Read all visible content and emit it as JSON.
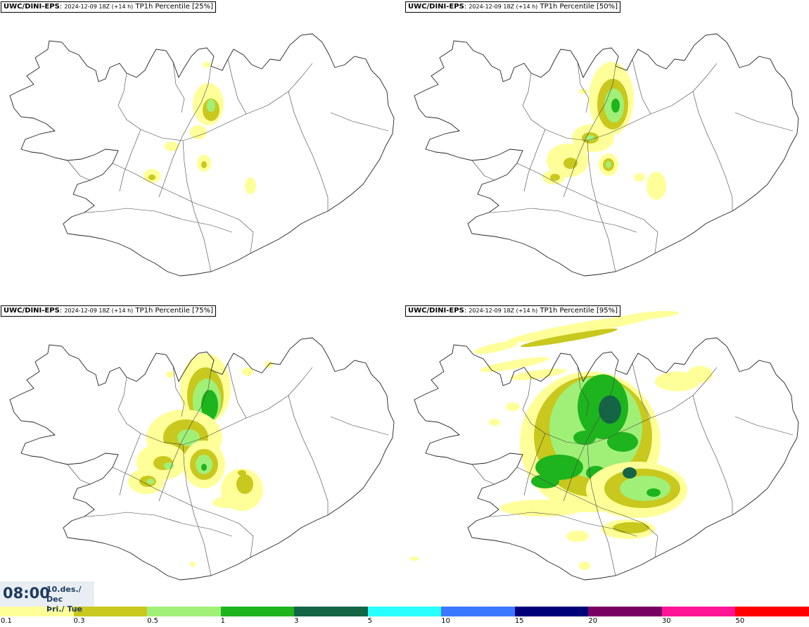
{
  "panels": [
    {
      "model": "UWC/DINI-EPS",
      "run": "2024-12-09 18Z (+14 h)",
      "field": "TP1h Percentile [25%]"
    },
    {
      "model": "UWC/DINI-EPS",
      "run": "2024-12-09 18Z (+14 h)",
      "field": "TP1h Percentile [50%]"
    },
    {
      "model": "UWC/DINI-EPS",
      "run": "2024-12-09 18Z (+14 h)",
      "field": "TP1h Percentile [75%]"
    },
    {
      "model": "UWC/DINI-EPS",
      "run": "2024-12-09 18Z (+14 h)",
      "field": "TP1h Percentile [95%]"
    }
  ],
  "valid_time": {
    "time": "08:00",
    "date": "10.des./ Dec",
    "weekday": "Þri./ Tue"
  },
  "colorbar": {
    "colors": [
      "#ffff99",
      "#c8c81e",
      "#a0f078",
      "#1eb41e",
      "#146446",
      "#28ffff",
      "#3c78ff",
      "#000078",
      "#780064",
      "#ff1496",
      "#ff0000"
    ],
    "labels": [
      "0.1",
      "0.3",
      "0.5",
      "1",
      "3",
      "5",
      "10",
      "15",
      "20",
      "30",
      "50"
    ]
  }
}
